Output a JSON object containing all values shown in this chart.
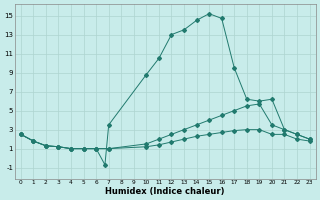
{
  "xlabel": "Humidex (Indice chaleur)",
  "bg_color": "#c8ecea",
  "grid_color": "#aed4d0",
  "line_color": "#217a6e",
  "xlim": [
    -0.5,
    23.5
  ],
  "ylim": [
    -2.2,
    16.2
  ],
  "xtick_vals": [
    0,
    1,
    2,
    3,
    4,
    5,
    6,
    7,
    8,
    9,
    10,
    11,
    12,
    13,
    14,
    15,
    16,
    17,
    18,
    19,
    20,
    21,
    22,
    23
  ],
  "ytick_vals": [
    -1,
    1,
    3,
    5,
    7,
    9,
    11,
    13,
    15
  ],
  "lines": [
    {
      "x": [
        0,
        1,
        2,
        3,
        4,
        5,
        6,
        6.7,
        7,
        10,
        11,
        12,
        13,
        14,
        15,
        16,
        17,
        18,
        19,
        20,
        21,
        22,
        23
      ],
      "y": [
        2.5,
        1.8,
        1.3,
        1.2,
        1.0,
        1.0,
        1.0,
        -0.7,
        3.5,
        8.8,
        10.5,
        13.0,
        13.5,
        14.5,
        15.2,
        14.7,
        9.5,
        6.2,
        6.0,
        6.2,
        3.0,
        2.5,
        2.0
      ]
    },
    {
      "x": [
        0,
        1,
        2,
        3,
        4,
        5,
        6,
        7,
        10,
        11,
        12,
        13,
        14,
        15,
        16,
        17,
        18,
        19,
        20,
        21,
        22,
        23
      ],
      "y": [
        2.5,
        1.8,
        1.3,
        1.2,
        1.0,
        1.0,
        1.0,
        1.0,
        1.5,
        2.0,
        2.5,
        3.0,
        3.5,
        4.0,
        4.5,
        5.0,
        5.5,
        5.7,
        3.5,
        3.0,
        2.5,
        2.0
      ]
    },
    {
      "x": [
        0,
        1,
        2,
        3,
        4,
        5,
        6,
        7,
        10,
        11,
        12,
        13,
        14,
        15,
        16,
        17,
        18,
        19,
        20,
        21,
        22,
        23
      ],
      "y": [
        2.5,
        1.8,
        1.3,
        1.2,
        1.0,
        1.0,
        1.0,
        1.0,
        1.2,
        1.4,
        1.7,
        2.0,
        2.3,
        2.5,
        2.7,
        2.9,
        3.0,
        3.0,
        2.5,
        2.5,
        2.0,
        1.8
      ]
    }
  ]
}
